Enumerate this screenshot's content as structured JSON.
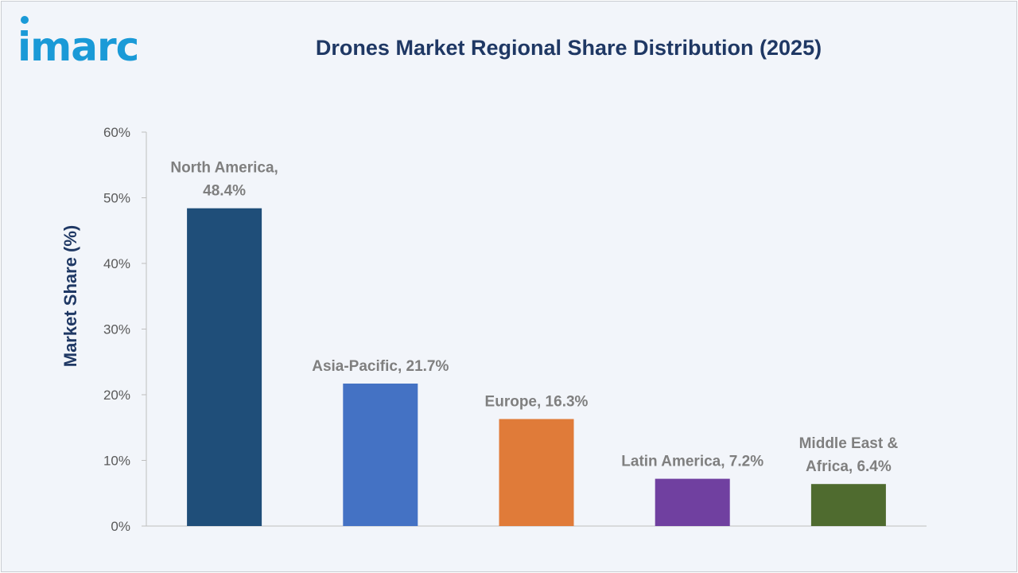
{
  "logo": {
    "text": "imarc",
    "color": "#1a9ad7"
  },
  "chart_data": {
    "type": "bar",
    "title": "Drones Market Regional Share Distribution (2025)",
    "xlabel": "",
    "ylabel": "Market Share (%)",
    "ylim": [
      0,
      60
    ],
    "yticks": [
      "0%",
      "10%",
      "20%",
      "30%",
      "40%",
      "50%",
      "60%"
    ],
    "categories": [
      "North America",
      "Asia-Pacific",
      "Europe",
      "Latin America",
      "Middle East & Africa"
    ],
    "values": [
      48.4,
      21.7,
      16.3,
      7.2,
      6.4
    ],
    "data_labels": [
      [
        "North America,",
        "48.4%"
      ],
      [
        "Asia-Pacific, 21.7%"
      ],
      [
        "Europe, 16.3%"
      ],
      [
        "Latin America, 7.2%"
      ],
      [
        "Middle East &",
        "Africa, 6.4%"
      ]
    ],
    "colors": [
      "#1f4e79",
      "#4472c4",
      "#e07b39",
      "#7040a0",
      "#4f6b2f"
    ],
    "grid": false,
    "legend": "none"
  }
}
